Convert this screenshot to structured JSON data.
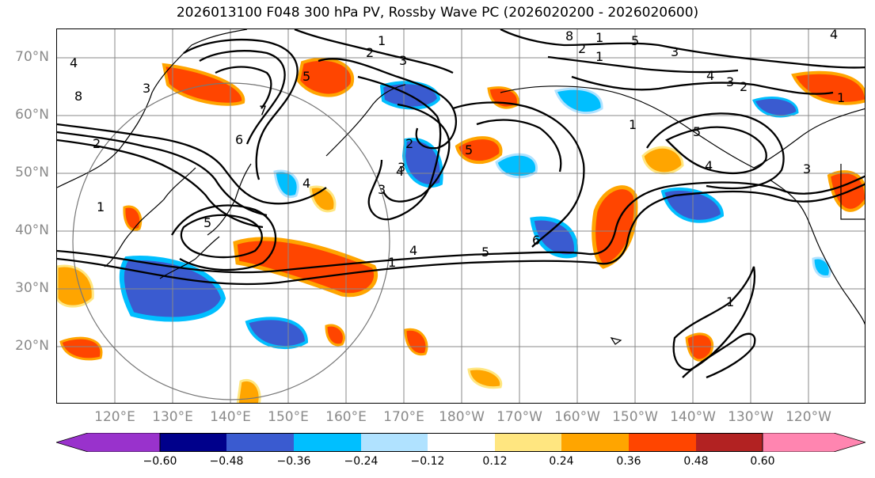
{
  "title": "2026013100 F048 300 hPa PV, Rossby Wave PC (2026020200 - 2026020600)",
  "lat_labels": [
    "70°N",
    "60°N",
    "50°N",
    "40°N",
    "30°N",
    "20°N"
  ],
  "lon_labels": [
    "120°E",
    "130°E",
    "140°E",
    "150°E",
    "160°E",
    "170°E",
    "180°W",
    "170°W",
    "160°W",
    "150°W",
    "140°W",
    "130°W",
    "120°W"
  ],
  "colorbar": {
    "colors": [
      "#9932cc",
      "#00008b",
      "#3a5bd0",
      "#00bfff",
      "#b0e2ff",
      "#ffffff",
      "#ffe680",
      "#ffa500",
      "#ff4500",
      "#b22222",
      "#ff85b0"
    ],
    "ticks": [
      "−0.60",
      "−0.48",
      "−0.36",
      "−0.24",
      "−0.12",
      "0.12",
      "0.24",
      "0.36",
      "0.48",
      "0.60"
    ]
  },
  "contour_labels": [
    "1",
    "2",
    "3",
    "4",
    "5",
    "6",
    "7",
    "8",
    "1",
    "2",
    "3",
    "4",
    "5",
    "1",
    "4",
    "5",
    "3",
    "2",
    "5",
    "4",
    "3",
    "1",
    "6",
    "2",
    "8",
    "1",
    "5",
    "3",
    "4",
    "3",
    "2",
    "1",
    "5",
    "4",
    "3",
    "1",
    "4",
    "1"
  ],
  "colors": {
    "frame": "#000000",
    "grid": "#888888",
    "axis_text": "#8a8a8a",
    "coast": "#000000"
  }
}
